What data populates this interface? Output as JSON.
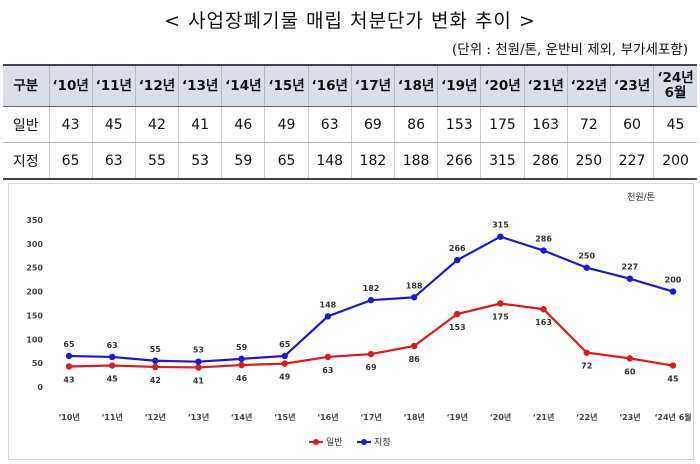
{
  "title": "< 사업장폐기물 매립 처분단가 변화 추이 >",
  "subtitle": "(단위 : 천원/톤, 운반비 제외, 부가세포함)",
  "table": {
    "corner": "구분",
    "headers": [
      "‘10년",
      "‘11년",
      "‘12년",
      "‘13년",
      "‘14년",
      "‘15년",
      "‘16년",
      "‘17년",
      "‘18년",
      "‘19년",
      "‘20년",
      "‘21년",
      "‘22년",
      "‘23년",
      "‘24년 6월"
    ],
    "rows": [
      {
        "label": "일반",
        "values": [
          "43",
          "45",
          "42",
          "41",
          "46",
          "49",
          "63",
          "69",
          "86",
          "153",
          "175",
          "163",
          "72",
          "60",
          "45"
        ]
      },
      {
        "label": "지정",
        "values": [
          "65",
          "63",
          "55",
          "53",
          "59",
          "65",
          "148",
          "182",
          "188",
          "266",
          "315",
          "286",
          "250",
          "227",
          "200"
        ]
      }
    ]
  },
  "chart_data": {
    "type": "line",
    "unit_label": "천원/톤",
    "categories": [
      "‘10년",
      "‘11년",
      "‘12년",
      "‘13년",
      "‘14년",
      "‘15년",
      "‘16년",
      "‘17년",
      "‘18년",
      "‘19년",
      "‘20년",
      "‘21년",
      "‘22년",
      "‘23년",
      "‘24년 6월"
    ],
    "ylim": [
      0,
      350
    ],
    "yticks": [
      0,
      50,
      100,
      150,
      200,
      250,
      300,
      350
    ],
    "grid": false,
    "legend_position": "bottom-center",
    "series": [
      {
        "name": "일반",
        "color": "#e01a1a",
        "values": [
          43,
          45,
          42,
          41,
          46,
          49,
          63,
          69,
          86,
          153,
          175,
          163,
          72,
          60,
          45
        ]
      },
      {
        "name": "지정",
        "color": "#1a1ad6",
        "values": [
          65,
          63,
          55,
          53,
          59,
          65,
          148,
          182,
          188,
          266,
          315,
          286,
          250,
          227,
          200
        ]
      }
    ]
  }
}
